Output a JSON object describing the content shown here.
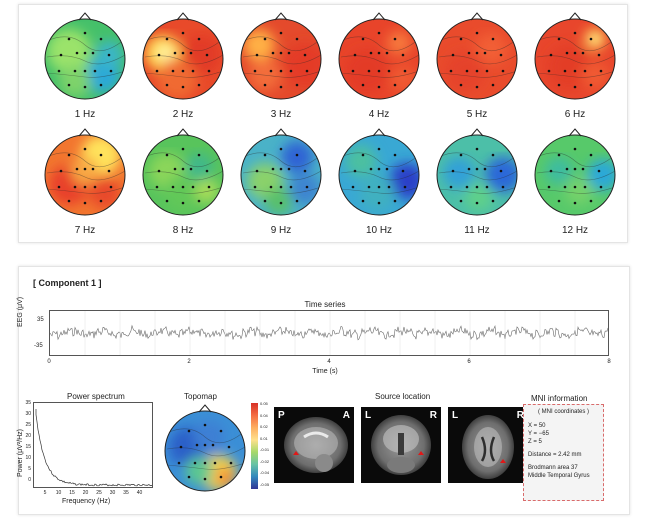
{
  "topomaps": {
    "labels": [
      "1 Hz",
      "2 Hz",
      "3 Hz",
      "4 Hz",
      "5 Hz",
      "6 Hz",
      "7 Hz",
      "8 Hz",
      "9 Hz",
      "10 Hz",
      "11 Hz",
      "12 Hz"
    ]
  },
  "component": {
    "title": "[ Component 1 ]",
    "time_series": {
      "title": "Time series",
      "ylabel": "EEG (μV)",
      "yticks": [
        "35",
        "-35"
      ],
      "xticks": [
        "0",
        "2",
        "4",
        "6",
        "8"
      ],
      "xlabel": "Time (s)"
    },
    "power_spectrum": {
      "title": "Power spectrum",
      "ylabel": "Power (μV²/Hz)",
      "yticks": [
        "35",
        "30",
        "25",
        "20",
        "15",
        "10",
        "5",
        "0"
      ],
      "xticks": [
        "5",
        "10",
        "15",
        "20",
        "25",
        "30",
        "35",
        "40"
      ],
      "xlabel": "Frequency (Hz)"
    },
    "topomap": {
      "title": "Topomap",
      "colorbar_ticks": [
        "0.05",
        "0.04",
        "0.02",
        "0.01",
        "-0.01",
        "-0.02",
        "-0.04",
        "-0.05"
      ]
    },
    "source_location": {
      "title": "Source location",
      "views": [
        {
          "left": "P",
          "right": "A"
        },
        {
          "left": "L",
          "right": "R"
        },
        {
          "left": "L",
          "right": "R"
        }
      ]
    },
    "mni": {
      "title": "MNI information",
      "header": "( MNI coordinates )",
      "x": "X = 50",
      "y": "Y = −65",
      "z": "Z = 5",
      "distance": "Distance = 2.42 mm",
      "area": "Brodmann area 37",
      "gyrus": "Middle Temporal Gyrus"
    }
  }
}
